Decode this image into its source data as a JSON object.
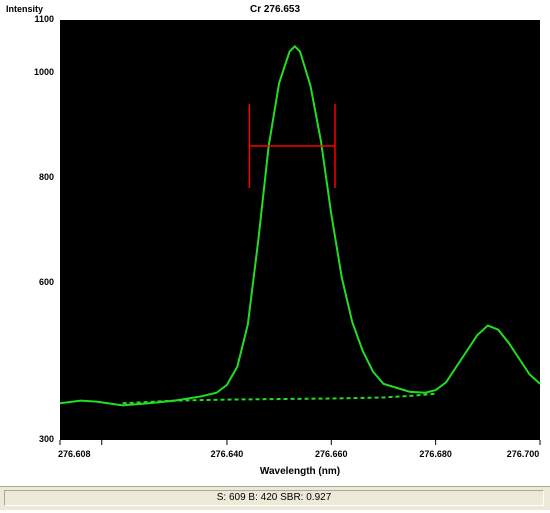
{
  "chart_data": {
    "type": "line",
    "title": "Cr 276.653",
    "ylabel": "Intensity",
    "xlabel": "Wavelength (nm)",
    "xlim": [
      276.608,
      276.7
    ],
    "ylim": [
      300,
      1100
    ],
    "ytick_labels": [
      "1100",
      "1000",
      "800",
      "600",
      "300"
    ],
    "ytick_values": [
      1100,
      1000,
      800,
      600,
      300
    ],
    "xtick_labels": [
      "276.608",
      "276.640",
      "276.660",
      "276.680",
      "276.700"
    ],
    "xtick_values": [
      276.608,
      276.64,
      276.66,
      276.68,
      276.7
    ],
    "series": [
      {
        "name": "",
        "style": "solid",
        "color": "#22dd22",
        "x": [
          276.608,
          276.612,
          276.615,
          276.62,
          276.625,
          276.63,
          276.635,
          276.638,
          276.64,
          276.642,
          276.644,
          276.646,
          276.648,
          276.65,
          276.652,
          276.653,
          276.654,
          276.656,
          276.658,
          276.66,
          276.662,
          276.664,
          276.666,
          276.668,
          276.67,
          276.675,
          276.678,
          276.68,
          276.682,
          276.684,
          276.686,
          276.688,
          276.69,
          276.692,
          276.694,
          276.696,
          276.698,
          276.7
        ],
        "y": [
          370,
          375,
          373,
          366,
          370,
          375,
          383,
          390,
          405,
          440,
          520,
          680,
          860,
          980,
          1040,
          1050,
          1040,
          975,
          870,
          730,
          610,
          525,
          470,
          430,
          407,
          392,
          390,
          395,
          410,
          440,
          470,
          500,
          518,
          510,
          485,
          455,
          425,
          407
        ]
      },
      {
        "name": "",
        "style": "dashed",
        "color": "#22dd22",
        "x": [
          276.62,
          276.63,
          276.64,
          276.65,
          276.66,
          276.67,
          276.675,
          276.68
        ],
        "y": [
          370,
          375,
          377,
          378,
          379,
          381,
          384,
          388
        ]
      }
    ],
    "marker": {
      "type": "FWHM",
      "color": "#ff0000",
      "x_left": 276.6443,
      "x_right": 276.6607,
      "y": 860,
      "y_top": 940,
      "y_bottom": 780
    },
    "grid": false,
    "legend": "none"
  },
  "status": {
    "text": "S: 609 B: 420 SBR: 0.927"
  }
}
